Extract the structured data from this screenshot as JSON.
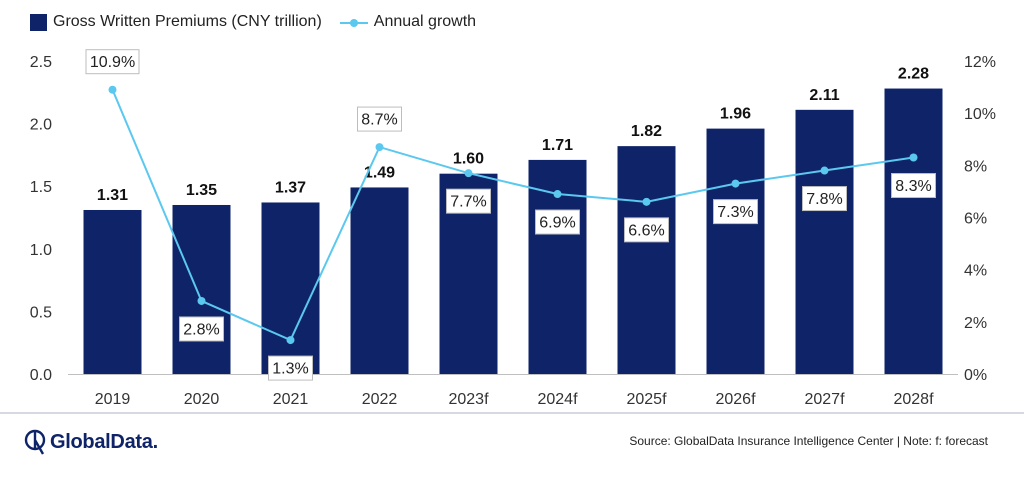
{
  "chart_data": {
    "type": "bar",
    "categories": [
      "2019",
      "2020",
      "2021",
      "2022",
      "2023f",
      "2024f",
      "2025f",
      "2026f",
      "2027f",
      "2028f"
    ],
    "series": [
      {
        "name": "Gross Written Premiums (CNY trillion)",
        "type": "bar",
        "axis": "left",
        "values": [
          1.31,
          1.35,
          1.37,
          1.49,
          1.6,
          1.71,
          1.82,
          1.96,
          2.11,
          2.28
        ],
        "labels": [
          "1.31",
          "1.35",
          "1.37",
          "1.49",
          "1.60",
          "1.71",
          "1.82",
          "1.96",
          "2.11",
          "2.28"
        ]
      },
      {
        "name": "Annual growth",
        "type": "line",
        "axis": "right",
        "values": [
          10.9,
          2.8,
          1.3,
          8.7,
          7.7,
          6.9,
          6.6,
          7.3,
          7.8,
          8.3
        ],
        "labels": [
          "10.9%",
          "2.8%",
          "1.3%",
          "8.7%",
          "7.7%",
          "6.9%",
          "6.6%",
          "7.3%",
          "7.8%",
          "8.3%"
        ]
      }
    ],
    "ylim": [
      0,
      2.5
    ],
    "y_ticks": [
      "0.0",
      "0.5",
      "1.0",
      "1.5",
      "2.0",
      "2.5"
    ],
    "y2lim": [
      0,
      12
    ],
    "y2_ticks": [
      "0%",
      "2%",
      "4%",
      "6%",
      "8%",
      "10%",
      "12%"
    ],
    "grid": false,
    "legend": "top-left",
    "colors": {
      "bar": "#0f2468",
      "line": "#5bc8ef"
    }
  },
  "legend": {
    "bar_label": "Gross Written Premiums (CNY trillion)",
    "line_label": "Annual growth"
  },
  "footer": {
    "brand": "GlobalData.",
    "source": "Source: GlobalData Insurance Intelligence Center | Note: f: forecast"
  }
}
